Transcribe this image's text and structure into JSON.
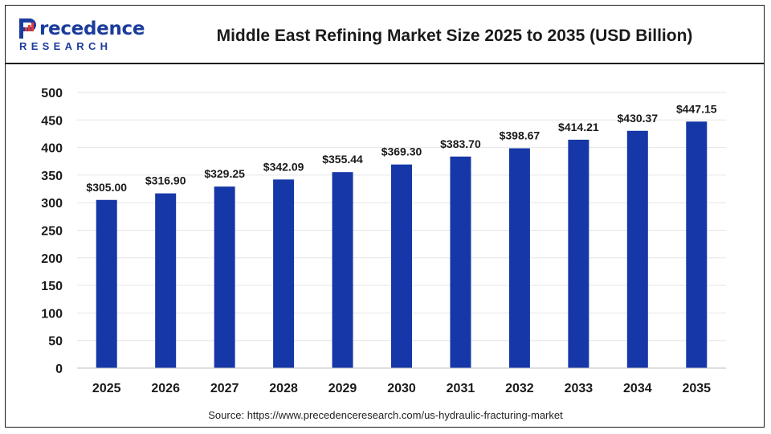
{
  "header": {
    "logo_word": "recedence",
    "logo_sub": "RESEARCH",
    "title": "Middle East Refining Market Size 2025 to 2035 (USD Billion)"
  },
  "footer": {
    "source_prefix": "Source: ",
    "source_url": "https://www.precedenceresearch.com/us-hydraulic-fracturing-market"
  },
  "colors": {
    "bar": "#1637a7",
    "brand": "#1c3c9c",
    "grid": "#e6e6e6",
    "text": "#1a1a1a"
  },
  "chart_data": {
    "type": "bar",
    "title": "Middle East Refining Market Size 2025 to 2035 (USD Billion)",
    "xlabel": "",
    "ylabel": "",
    "categories": [
      "2025",
      "2026",
      "2027",
      "2028",
      "2029",
      "2030",
      "2031",
      "2032",
      "2033",
      "2034",
      "2035"
    ],
    "values": [
      305.0,
      316.9,
      329.25,
      342.09,
      355.44,
      369.3,
      383.7,
      398.67,
      414.21,
      430.37,
      447.15
    ],
    "data_labels": [
      "$305.00",
      "$316.90",
      "$329.25",
      "$342.09",
      "$355.44",
      "$369.30",
      "$383.70",
      "$398.67",
      "$414.21",
      "$430.37",
      "$447.15"
    ],
    "ylim": [
      0,
      500
    ],
    "yticks": [
      0,
      50,
      100,
      150,
      200,
      250,
      300,
      350,
      400,
      450,
      500
    ],
    "grid": true,
    "legend": "none"
  }
}
